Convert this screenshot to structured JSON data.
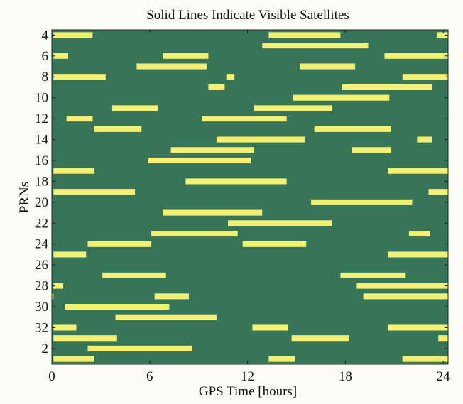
{
  "chart_data": {
    "type": "bar",
    "subtype": "broken-horizontal-bar (satellite visibility timeline)",
    "title": "Solid Lines Indicate Visible Satellites",
    "xlabel": "GPS Time [hours]",
    "ylabel": "PRNs",
    "xlim": [
      0,
      24.3
    ],
    "xticks": [
      0,
      6,
      12,
      18,
      24
    ],
    "rows": [
      4,
      5,
      6,
      7,
      8,
      9,
      10,
      11,
      12,
      13,
      14,
      15,
      16,
      17,
      18,
      19,
      20,
      21,
      22,
      23,
      24,
      25,
      26,
      27,
      28,
      29,
      30,
      31,
      32,
      1,
      2,
      3
    ],
    "ytick_labels": [
      4,
      6,
      8,
      10,
      12,
      14,
      16,
      18,
      20,
      22,
      24,
      26,
      28,
      30,
      32,
      2
    ],
    "grid": false,
    "legend": "none",
    "background_color": "#377559",
    "bar_color": "#f4f072",
    "series": [
      {
        "prn": 4,
        "intervals": [
          [
            0.1,
            2.5
          ],
          [
            13.3,
            17.7
          ],
          [
            23.6,
            24.3
          ]
        ]
      },
      {
        "prn": 5,
        "intervals": [
          [
            12.9,
            19.4
          ]
        ]
      },
      {
        "prn": 6,
        "intervals": [
          [
            0.1,
            1.0
          ],
          [
            6.8,
            9.6
          ],
          [
            20.4,
            24.3
          ]
        ]
      },
      {
        "prn": 7,
        "intervals": [
          [
            5.2,
            9.5
          ],
          [
            15.2,
            18.6
          ]
        ]
      },
      {
        "prn": 8,
        "intervals": [
          [
            0.1,
            3.3
          ],
          [
            10.7,
            11.2
          ],
          [
            21.5,
            24.3
          ]
        ]
      },
      {
        "prn": 9,
        "intervals": [
          [
            9.6,
            10.6
          ],
          [
            17.8,
            23.3
          ]
        ]
      },
      {
        "prn": 10,
        "intervals": [
          [
            14.8,
            20.7
          ]
        ]
      },
      {
        "prn": 11,
        "intervals": [
          [
            3.7,
            6.5
          ],
          [
            12.4,
            17.2
          ]
        ]
      },
      {
        "prn": 12,
        "intervals": [
          [
            0.9,
            2.5
          ],
          [
            9.2,
            14.4
          ]
        ]
      },
      {
        "prn": 13,
        "intervals": [
          [
            2.6,
            5.5
          ],
          [
            16.1,
            20.8
          ]
        ]
      },
      {
        "prn": 14,
        "intervals": [
          [
            10.1,
            15.5
          ],
          [
            22.4,
            23.3
          ]
        ]
      },
      {
        "prn": 15,
        "intervals": [
          [
            7.3,
            12.4
          ],
          [
            18.4,
            20.8
          ]
        ]
      },
      {
        "prn": 16,
        "intervals": [
          [
            5.9,
            12.2
          ]
        ]
      },
      {
        "prn": 17,
        "intervals": [
          [
            0.1,
            2.6
          ],
          [
            20.6,
            24.3
          ]
        ]
      },
      {
        "prn": 18,
        "intervals": [
          [
            8.2,
            14.4
          ]
        ]
      },
      {
        "prn": 19,
        "intervals": [
          [
            0.1,
            5.1
          ],
          [
            23.1,
            24.3
          ]
        ]
      },
      {
        "prn": 20,
        "intervals": [
          [
            15.9,
            22.1
          ]
        ]
      },
      {
        "prn": 21,
        "intervals": [
          [
            6.8,
            12.9
          ]
        ]
      },
      {
        "prn": 22,
        "intervals": [
          [
            10.8,
            17.2
          ]
        ]
      },
      {
        "prn": 23,
        "intervals": [
          [
            6.1,
            11.4
          ],
          [
            21.9,
            23.2
          ]
        ]
      },
      {
        "prn": 24,
        "intervals": [
          [
            2.2,
            6.1
          ],
          [
            11.7,
            15.6
          ]
        ]
      },
      {
        "prn": 25,
        "intervals": [
          [
            0.1,
            2.1
          ],
          [
            20.6,
            24.3
          ]
        ]
      },
      {
        "prn": 26,
        "intervals": []
      },
      {
        "prn": 27,
        "intervals": [
          [
            3.1,
            7.0
          ],
          [
            17.7,
            21.7
          ]
        ]
      },
      {
        "prn": 28,
        "intervals": [
          [
            0.1,
            0.7
          ],
          [
            18.7,
            24.3
          ]
        ]
      },
      {
        "prn": 29,
        "intervals": [
          [
            0.0,
            0.1
          ],
          [
            6.3,
            8.4
          ],
          [
            19.1,
            24.3
          ]
        ]
      },
      {
        "prn": 30,
        "intervals": [
          [
            0.8,
            7.2
          ]
        ]
      },
      {
        "prn": 31,
        "intervals": [
          [
            3.9,
            10.1
          ]
        ]
      },
      {
        "prn": 32,
        "intervals": [
          [
            0.1,
            1.5
          ],
          [
            12.3,
            14.5
          ],
          [
            20.6,
            24.3
          ]
        ]
      },
      {
        "prn": 1,
        "intervals": [
          [
            0.1,
            4.0
          ],
          [
            14.7,
            18.2
          ],
          [
            23.7,
            24.3
          ]
        ]
      },
      {
        "prn": 2,
        "intervals": [
          [
            2.2,
            8.6
          ]
        ]
      },
      {
        "prn": 3,
        "intervals": [
          [
            0.1,
            2.6
          ],
          [
            13.3,
            14.9
          ],
          [
            21.5,
            24.3
          ]
        ]
      }
    ]
  }
}
